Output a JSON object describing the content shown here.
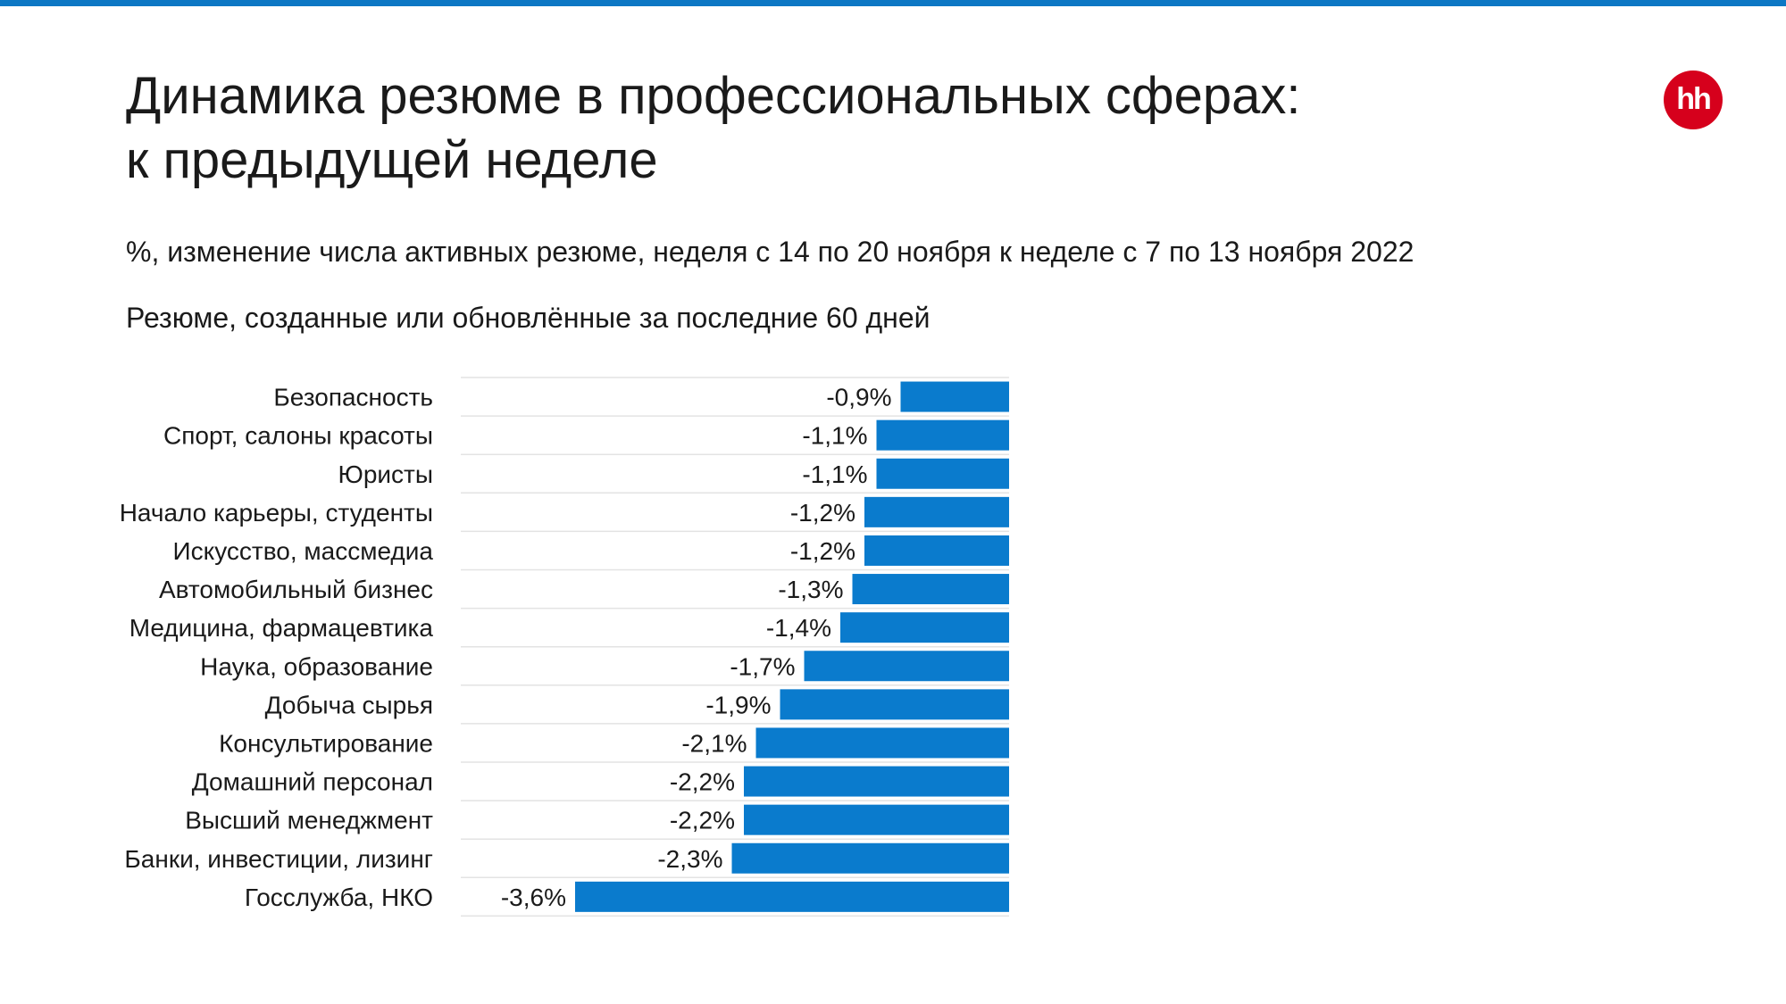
{
  "header": {
    "title_line1": "Динамика резюме в профессиональных сферах:",
    "title_line2": "к предыдущей неделе",
    "subtitle": "%, изменение числа активных резюме, неделя с 14 по 20 ноября к неделе с 7 по 13 ноября 2022",
    "note": "Резюме, созданные или обновлённые за последние 60 дней",
    "logo_text": "hh",
    "accent_color": "#0d77c4",
    "logo_color": "#d6001c"
  },
  "chart_data": {
    "type": "bar",
    "orientation": "horizontal",
    "categories": [
      "Безопасность",
      "Спорт, салоны красоты",
      "Юристы",
      "Начало карьеры, студенты",
      "Искусство, массмедиа",
      "Автомобильный бизнес",
      "Медицина, фармацевтика",
      "Наука, образование",
      "Добыча сырья",
      "Консультирование",
      "Домашний персонал",
      "Высший менеджмент",
      "Банки, инвестиции, лизинг",
      "Госслужба, НКО"
    ],
    "values": [
      -0.9,
      -1.1,
      -1.1,
      -1.2,
      -1.2,
      -1.3,
      -1.4,
      -1.7,
      -1.9,
      -2.1,
      -2.2,
      -2.2,
      -2.3,
      -3.6
    ],
    "value_labels": [
      "-0,9%",
      "-1,1%",
      "-1,1%",
      "-1,2%",
      "-1,2%",
      "-1,3%",
      "-1,4%",
      "-1,7%",
      "-1,9%",
      "-2,1%",
      "-2,2%",
      "-2,2%",
      "-2,3%",
      "-3,6%"
    ],
    "xlim": [
      -4.5,
      0
    ],
    "bar_color": "#0a7bcd",
    "grid": false,
    "legend": "none"
  }
}
